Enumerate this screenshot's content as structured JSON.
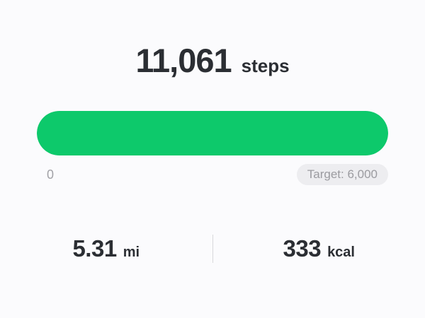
{
  "colors": {
    "background": "#fbfbfd",
    "progress_green": "#0dc96b",
    "track_gray": "#ededf0",
    "pill_bg": "#ededf0",
    "muted_text": "#a2a2a7",
    "primary_text": "#2b2e33",
    "divider": "#d8d8db"
  },
  "header": {
    "value": "11,061",
    "unit": "steps"
  },
  "progress": {
    "percent": 100,
    "start_label": "0",
    "target_label": "Target: 6,000"
  },
  "stats": {
    "distance": {
      "value": "5.31",
      "unit": "mi"
    },
    "calories": {
      "value": "333",
      "unit": "kcal"
    }
  }
}
